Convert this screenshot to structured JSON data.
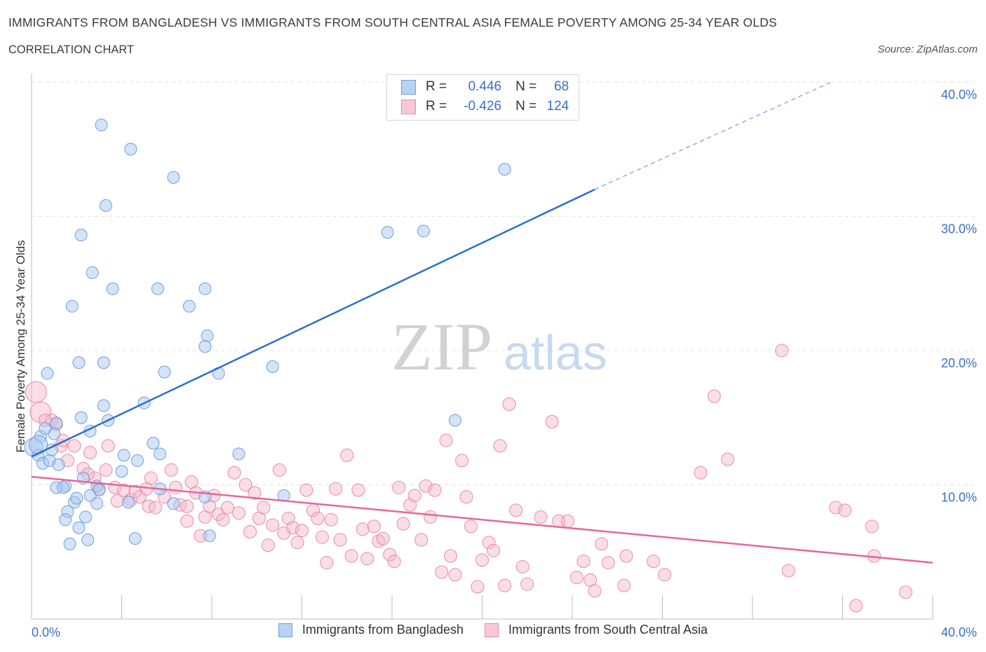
{
  "header": {
    "title": "IMMIGRANTS FROM BANGLADESH VS IMMIGRANTS FROM SOUTH CENTRAL ASIA FEMALE POVERTY AMONG 25-34 YEAR OLDS",
    "subtitle": "CORRELATION CHART",
    "source": "Source: ZipAtlas.com"
  },
  "watermark": {
    "zip": "ZIP",
    "atlas": "atlas"
  },
  "legend": {
    "rows": [
      {
        "r_label": "R =",
        "r_value": "0.446",
        "n_label": "N =",
        "n_value": "68"
      },
      {
        "r_label": "R =",
        "r_value": "-0.426",
        "n_label": "N =",
        "n_value": "124"
      }
    ]
  },
  "colors": {
    "blue_fill": "#a9c8f0",
    "blue_stroke": "#6f9fdd",
    "blue_line": "#2d70cc",
    "pink_fill": "#f5b6c8",
    "pink_stroke": "#e88aa6",
    "pink_line": "#e5679a",
    "tick_label": "#3a6fc8",
    "grid": "#e0e0e0"
  },
  "chart_data": {
    "type": "scatter",
    "title": "IMMIGRANTS FROM BANGLADESH VS IMMIGRANTS FROM SOUTH CENTRAL ASIA FEMALE POVERTY AMONG 25-34 YEAR OLDS",
    "xlabel": "",
    "ylabel": "Female Poverty Among 25-34 Year Olds",
    "xlim": [
      0,
      40
    ],
    "ylim": [
      0,
      40
    ],
    "x_tick_labels": [
      "0.0%",
      "40.0%"
    ],
    "y_tick_labels": [
      "10.0%",
      "20.0%",
      "30.0%",
      "40.0%"
    ],
    "y_ticks": [
      10,
      20,
      30,
      40
    ],
    "grid": true,
    "legend_position": "top-center",
    "series": [
      {
        "name": "Immigrants from Bangladesh",
        "color": "#a9c8f0",
        "trend": {
          "x": [
            0,
            25
          ],
          "y": [
            12.1,
            32.0
          ],
          "dashed_to": [
            35.5,
            40.0
          ]
        },
        "points": [
          [
            0.1,
            12.8
          ],
          [
            0.3,
            12.2
          ],
          [
            0.4,
            13.6
          ],
          [
            0.5,
            11.6
          ],
          [
            0.8,
            11.8
          ],
          [
            0.9,
            12.6
          ],
          [
            1.0,
            13.8
          ],
          [
            1.1,
            14.6
          ],
          [
            0.7,
            18.3
          ],
          [
            3.1,
            36.8
          ],
          [
            4.4,
            35.0
          ],
          [
            6.3,
            32.9
          ],
          [
            3.3,
            30.8
          ],
          [
            2.2,
            28.6
          ],
          [
            2.7,
            25.8
          ],
          [
            3.6,
            24.6
          ],
          [
            1.8,
            23.3
          ],
          [
            5.6,
            24.6
          ],
          [
            7.7,
            24.6
          ],
          [
            7.0,
            23.3
          ],
          [
            7.8,
            21.1
          ],
          [
            7.7,
            20.3
          ],
          [
            8.3,
            18.3
          ],
          [
            10.7,
            18.8
          ],
          [
            2.1,
            19.1
          ],
          [
            3.2,
            19.1
          ],
          [
            5.9,
            18.4
          ],
          [
            3.2,
            15.9
          ],
          [
            3.4,
            14.8
          ],
          [
            2.6,
            14.0
          ],
          [
            5.0,
            16.1
          ],
          [
            5.4,
            13.1
          ],
          [
            4.1,
            12.2
          ],
          [
            4.7,
            11.8
          ],
          [
            5.7,
            12.3
          ],
          [
            4.0,
            11.0
          ],
          [
            9.2,
            12.3
          ],
          [
            1.5,
            9.9
          ],
          [
            1.1,
            9.8
          ],
          [
            1.4,
            9.8
          ],
          [
            2.3,
            10.5
          ],
          [
            2.9,
            9.9
          ],
          [
            3.0,
            9.6
          ],
          [
            2.6,
            9.2
          ],
          [
            2.9,
            8.6
          ],
          [
            1.9,
            8.7
          ],
          [
            2.0,
            9.0
          ],
          [
            1.6,
            8.0
          ],
          [
            2.4,
            7.6
          ],
          [
            1.5,
            7.4
          ],
          [
            2.1,
            6.8
          ],
          [
            4.3,
            8.7
          ],
          [
            5.7,
            9.7
          ],
          [
            6.3,
            8.6
          ],
          [
            7.7,
            9.1
          ],
          [
            11.2,
            9.2
          ],
          [
            1.7,
            5.6
          ],
          [
            2.5,
            5.9
          ],
          [
            4.6,
            6.0
          ],
          [
            7.9,
            6.2
          ],
          [
            15.8,
            28.8
          ],
          [
            17.4,
            28.9
          ],
          [
            21.0,
            33.5
          ],
          [
            18.8,
            14.8
          ],
          [
            0.3,
            13.0
          ],
          [
            1.2,
            11.5
          ],
          [
            2.2,
            15.0
          ],
          [
            0.6,
            14.2
          ]
        ]
      },
      {
        "name": "Immigrants from South Central Asia",
        "color": "#f5b6c8",
        "trend": {
          "x": [
            0,
            40
          ],
          "y": [
            10.6,
            4.2
          ]
        },
        "points": [
          [
            0.2,
            16.9
          ],
          [
            0.4,
            15.4
          ],
          [
            0.9,
            14.8
          ],
          [
            1.1,
            14.5
          ],
          [
            1.3,
            12.9
          ],
          [
            1.6,
            11.8
          ],
          [
            1.9,
            12.9
          ],
          [
            2.3,
            11.2
          ],
          [
            2.6,
            12.4
          ],
          [
            2.8,
            10.5
          ],
          [
            3.0,
            9.7
          ],
          [
            3.3,
            11.1
          ],
          [
            3.4,
            12.9
          ],
          [
            3.7,
            9.8
          ],
          [
            3.8,
            8.8
          ],
          [
            4.1,
            9.6
          ],
          [
            4.4,
            8.9
          ],
          [
            4.6,
            9.5
          ],
          [
            4.8,
            9.1
          ],
          [
            5.1,
            9.7
          ],
          [
            5.2,
            8.4
          ],
          [
            5.3,
            10.5
          ],
          [
            5.5,
            8.3
          ],
          [
            5.9,
            9.1
          ],
          [
            6.2,
            11.1
          ],
          [
            6.4,
            9.8
          ],
          [
            6.6,
            8.5
          ],
          [
            6.9,
            8.4
          ],
          [
            7.1,
            10.2
          ],
          [
            7.3,
            9.4
          ],
          [
            7.5,
            6.2
          ],
          [
            7.7,
            7.6
          ],
          [
            7.9,
            8.4
          ],
          [
            8.1,
            9.2
          ],
          [
            8.3,
            7.8
          ],
          [
            8.5,
            7.4
          ],
          [
            8.7,
            8.3
          ],
          [
            9.0,
            10.9
          ],
          [
            9.2,
            7.9
          ],
          [
            9.5,
            10.0
          ],
          [
            9.7,
            6.5
          ],
          [
            9.9,
            9.4
          ],
          [
            10.1,
            7.5
          ],
          [
            10.3,
            8.3
          ],
          [
            10.5,
            5.5
          ],
          [
            10.7,
            7.0
          ],
          [
            11.0,
            11.1
          ],
          [
            11.2,
            6.4
          ],
          [
            11.4,
            7.5
          ],
          [
            11.6,
            6.8
          ],
          [
            11.8,
            5.7
          ],
          [
            12.0,
            6.6
          ],
          [
            12.2,
            9.6
          ],
          [
            12.5,
            8.1
          ],
          [
            12.7,
            7.5
          ],
          [
            12.9,
            6.1
          ],
          [
            13.1,
            4.2
          ],
          [
            13.3,
            7.4
          ],
          [
            13.5,
            9.7
          ],
          [
            13.7,
            5.9
          ],
          [
            14.0,
            12.2
          ],
          [
            14.2,
            4.7
          ],
          [
            14.5,
            9.6
          ],
          [
            14.7,
            6.7
          ],
          [
            14.9,
            4.5
          ],
          [
            15.2,
            6.9
          ],
          [
            15.4,
            5.8
          ],
          [
            15.6,
            6.0
          ],
          [
            15.9,
            4.8
          ],
          [
            16.1,
            4.3
          ],
          [
            16.3,
            9.8
          ],
          [
            16.5,
            7.1
          ],
          [
            16.8,
            8.5
          ],
          [
            17.0,
            9.2
          ],
          [
            17.3,
            5.9
          ],
          [
            17.5,
            9.9
          ],
          [
            17.7,
            7.6
          ],
          [
            17.9,
            9.6
          ],
          [
            18.2,
            3.5
          ],
          [
            18.4,
            13.3
          ],
          [
            18.6,
            4.7
          ],
          [
            18.8,
            3.3
          ],
          [
            19.1,
            11.8
          ],
          [
            19.3,
            9.1
          ],
          [
            19.5,
            6.9
          ],
          [
            19.8,
            2.4
          ],
          [
            20.0,
            4.4
          ],
          [
            20.3,
            5.7
          ],
          [
            20.5,
            5.1
          ],
          [
            20.8,
            12.9
          ],
          [
            21.0,
            2.5
          ],
          [
            21.2,
            16.0
          ],
          [
            21.5,
            8.1
          ],
          [
            21.8,
            3.9
          ],
          [
            22.0,
            2.6
          ],
          [
            22.6,
            7.6
          ],
          [
            23.1,
            14.7
          ],
          [
            23.4,
            7.3
          ],
          [
            23.8,
            7.3
          ],
          [
            24.2,
            3.1
          ],
          [
            24.5,
            4.3
          ],
          [
            24.8,
            2.9
          ],
          [
            25.0,
            2.1
          ],
          [
            25.3,
            5.6
          ],
          [
            25.6,
            4.2
          ],
          [
            26.4,
            4.7
          ],
          [
            26.3,
            2.5
          ],
          [
            27.6,
            4.3
          ],
          [
            28.1,
            3.3
          ],
          [
            29.7,
            10.9
          ],
          [
            30.3,
            16.6
          ],
          [
            30.9,
            11.9
          ],
          [
            33.3,
            20.0
          ],
          [
            33.6,
            3.6
          ],
          [
            35.7,
            8.3
          ],
          [
            36.1,
            8.1
          ],
          [
            36.6,
            1.0
          ],
          [
            37.3,
            6.9
          ],
          [
            37.4,
            4.7
          ],
          [
            38.8,
            2.0
          ],
          [
            0.6,
            14.8
          ],
          [
            1.4,
            13.3
          ],
          [
            2.5,
            10.8
          ],
          [
            6.9,
            7.3
          ]
        ]
      }
    ]
  }
}
